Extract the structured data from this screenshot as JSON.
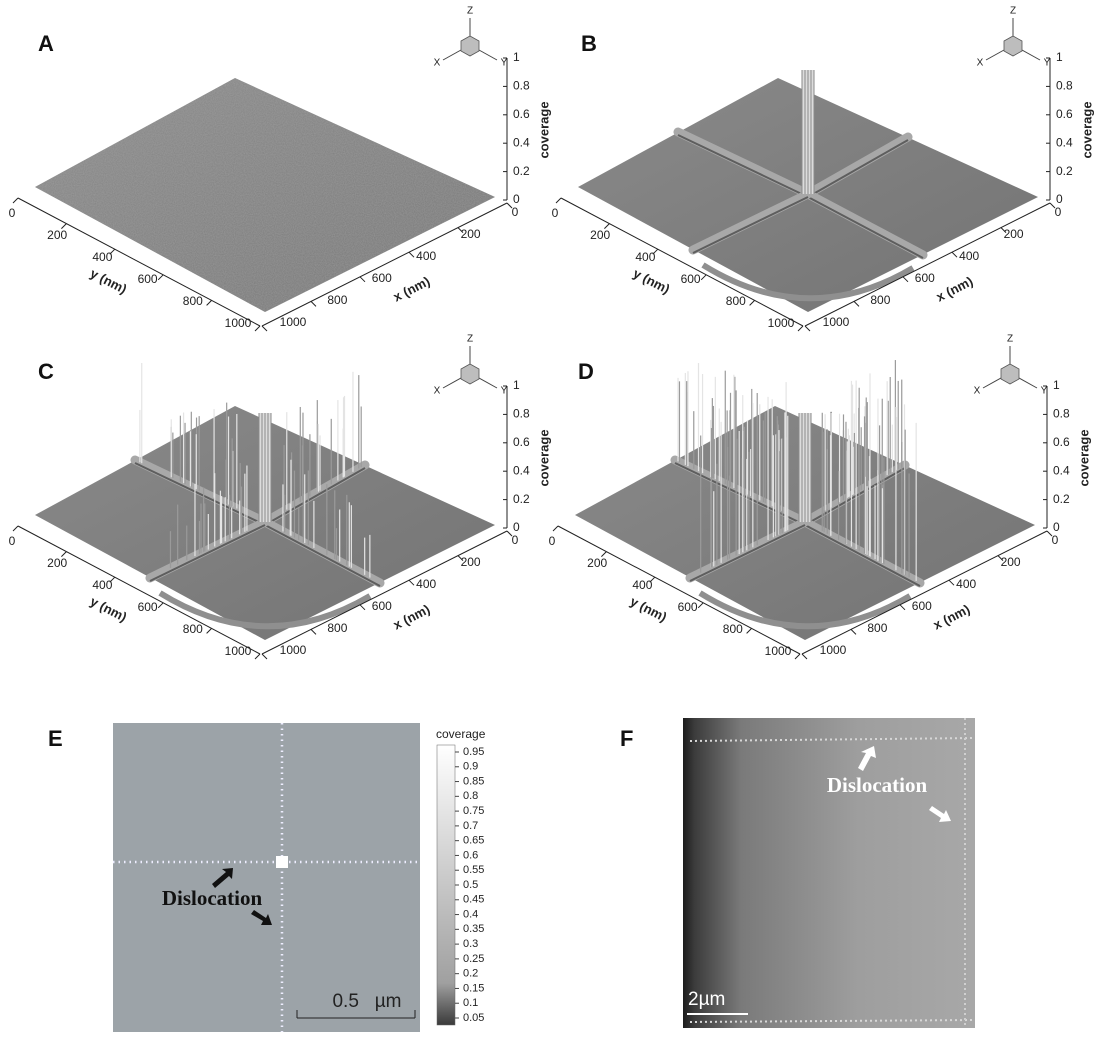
{
  "panels": [
    {
      "label": "A"
    },
    {
      "label": "B"
    },
    {
      "label": "C"
    },
    {
      "label": "D"
    }
  ],
  "surface_axes": {
    "triad": {
      "z": "Z",
      "x": "X",
      "y": "Y"
    },
    "z_label": "coverage",
    "z_ticks": [
      0,
      0.2,
      0.4,
      0.6,
      0.8,
      1
    ],
    "x_label": "x (nm)",
    "x_ticks": [
      0,
      200,
      400,
      600,
      800,
      1000
    ],
    "y_label": "y (nm)",
    "y_ticks": [
      0,
      200,
      400,
      600,
      800,
      1000
    ]
  },
  "panel_e": {
    "label": "E",
    "colorbar_title": "coverage",
    "colorbar_ticks": [
      0.95,
      0.9,
      0.85,
      0.8,
      0.75,
      0.7,
      0.65,
      0.6,
      0.55,
      0.5,
      0.45,
      0.4,
      0.35,
      0.3,
      0.25,
      0.2,
      0.15,
      0.1,
      0.05
    ],
    "annotation": "Dislocation",
    "scale_bar": "0.5   µm"
  },
  "panel_f": {
    "label": "F",
    "annotation": "Dislocation",
    "scale_bar": "2µm"
  }
}
